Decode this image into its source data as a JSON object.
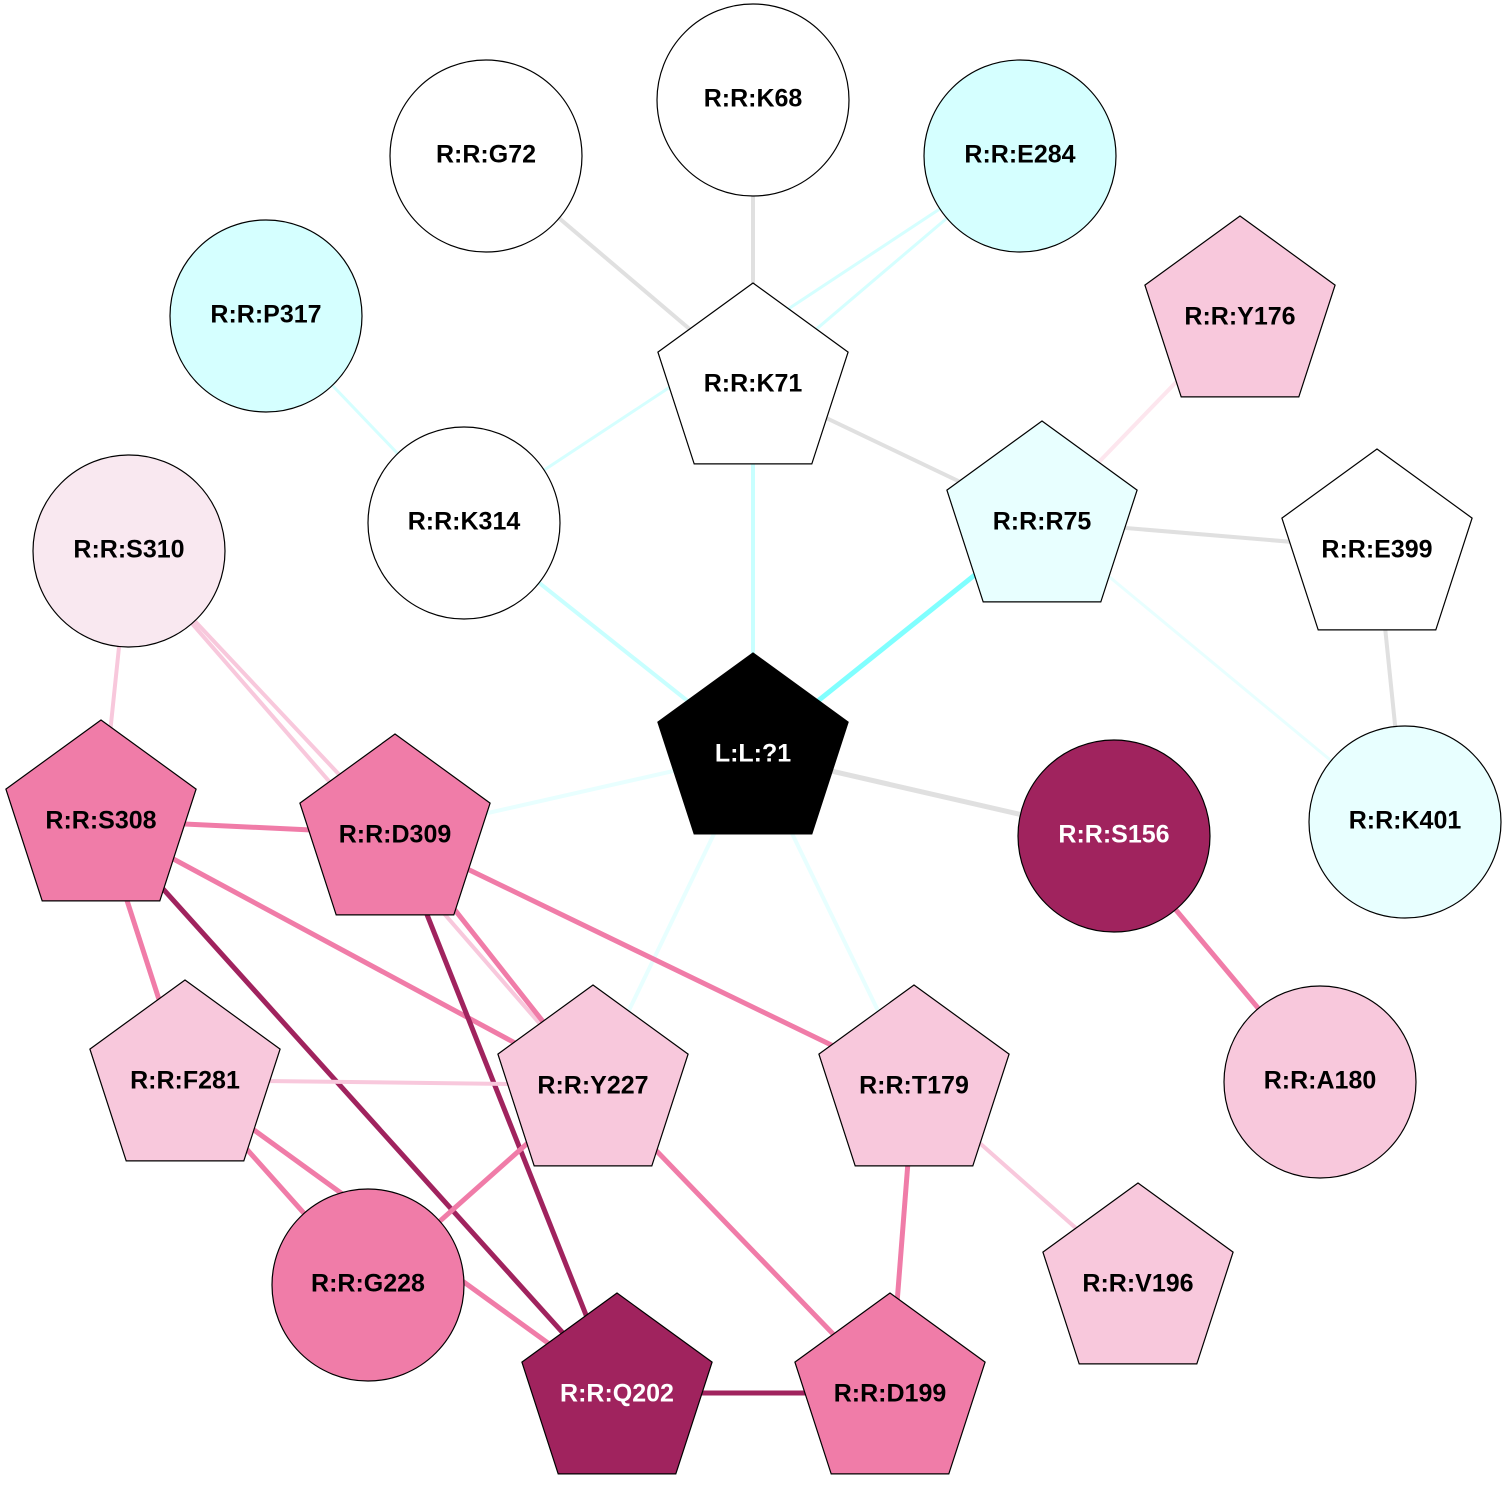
{
  "nodes": [
    {
      "label": "R:R:K68"
    },
    {
      "label": "R:R:G72"
    },
    {
      "label": "R:R:E284"
    },
    {
      "label": "R:R:P317"
    },
    {
      "label": "R:R:Y176"
    },
    {
      "label": "R:R:K71"
    },
    {
      "label": "R:R:K314"
    },
    {
      "label": "R:R:R75"
    },
    {
      "label": "R:R:E399"
    },
    {
      "label": "R:R:S310"
    },
    {
      "label": "L:L:?1"
    },
    {
      "label": "R:R:S308"
    },
    {
      "label": "R:R:D309"
    },
    {
      "label": "R:R:S156"
    },
    {
      "label": "R:R:K401"
    },
    {
      "label": "R:R:F281"
    },
    {
      "label": "R:R:Y227"
    },
    {
      "label": "R:R:T179"
    },
    {
      "label": "R:R:A180"
    },
    {
      "label": "R:R:G228"
    },
    {
      "label": "R:R:V196"
    },
    {
      "label": "R:R:Q202"
    },
    {
      "label": "R:R:D199"
    }
  ]
}
